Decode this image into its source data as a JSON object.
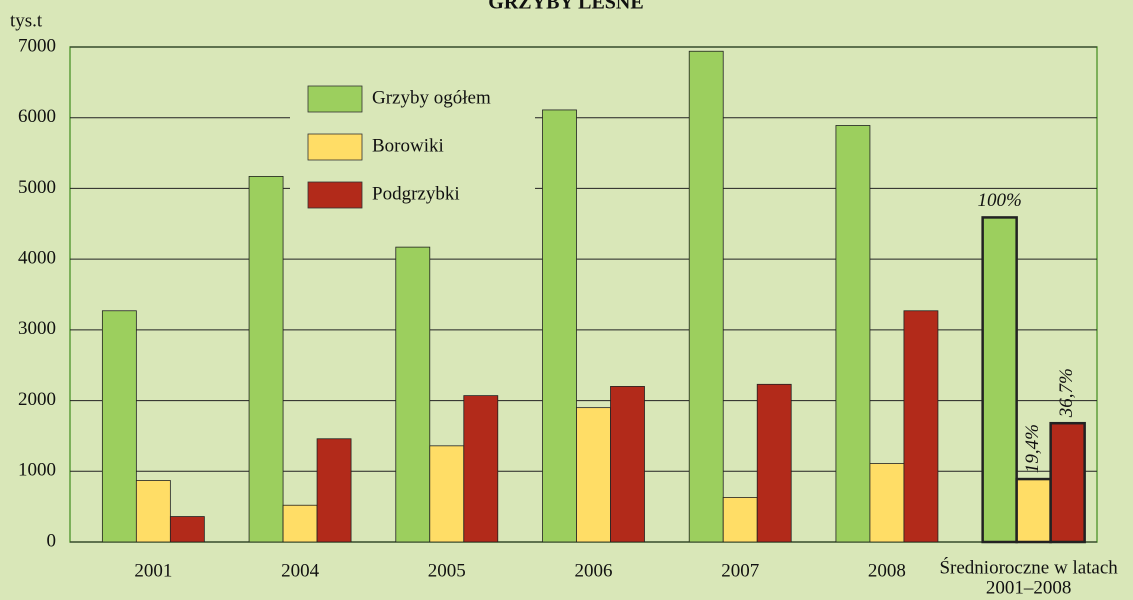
{
  "chart_data": {
    "type": "bar",
    "title": "GRZYBY LEŚNE",
    "y_label": "tys.t",
    "categories": [
      "2001",
      "2004",
      "2005",
      "2006",
      "2007",
      "2008",
      [
        "Średnioroczne w latach",
        "2001–2008"
      ]
    ],
    "series": [
      {
        "name": "Grzyby ogółem",
        "color": "#9ccf5e",
        "values": [
          3270,
          5170,
          4170,
          6110,
          6940,
          5890,
          4590
        ]
      },
      {
        "name": "Borowiki",
        "color": "#ffdd66",
        "values": [
          870,
          520,
          1360,
          1900,
          630,
          1110,
          890
        ]
      },
      {
        "name": "Podgrzybki",
        "color": "#b22a1a",
        "values": [
          360,
          1460,
          2070,
          2200,
          2230,
          3270,
          1680
        ]
      }
    ],
    "annotations": [
      "100%",
      "19,4%",
      "36,7%"
    ],
    "ylim": [
      0,
      7000
    ],
    "yticks": [
      0,
      1000,
      2000,
      3000,
      4000,
      5000,
      6000,
      7000
    ],
    "grid": true,
    "legend": "top-left"
  }
}
